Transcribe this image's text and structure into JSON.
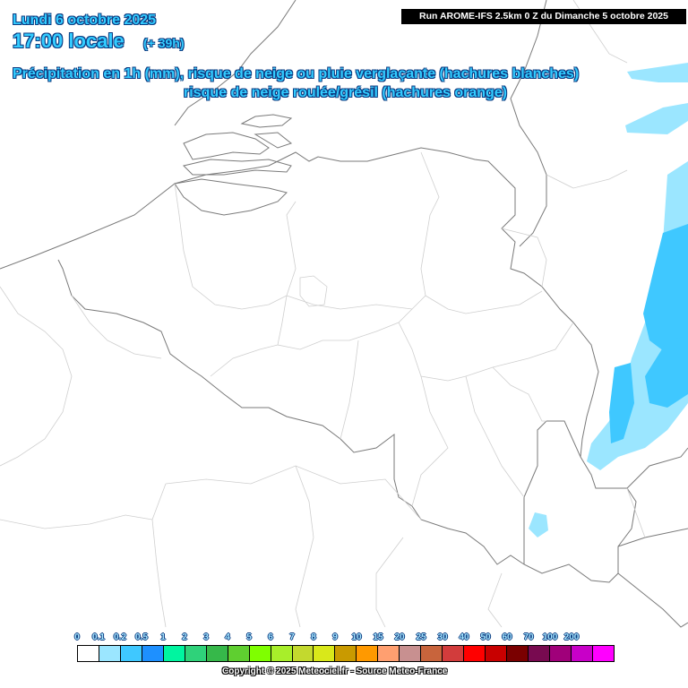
{
  "header": {
    "date": "Lundi 6 octobre 2025",
    "time": "17:00 locale",
    "lead": "(+ 39h)",
    "title_line1": "Précipitation en 1h (mm), risque de neige ou pluie verglaçante (hachures blanches)",
    "title_line2": "risque de neige roulée/grésil (hachures orange)"
  },
  "run_info": "Run AROME-IFS 2.5km 0 Z du Dimanche 5 octobre 2025",
  "legend": [
    {
      "label": "0",
      "color": "#ffffff"
    },
    {
      "label": "0.1",
      "color": "#9be6ff"
    },
    {
      "label": "0.2",
      "color": "#3fc8ff"
    },
    {
      "label": "0.5",
      "color": "#1e90ff"
    },
    {
      "label": "1",
      "color": "#00f5a0"
    },
    {
      "label": "2",
      "color": "#2fd27a"
    },
    {
      "label": "3",
      "color": "#36b84a"
    },
    {
      "label": "4",
      "color": "#5fcf30"
    },
    {
      "label": "5",
      "color": "#7fff00"
    },
    {
      "label": "6",
      "color": "#a8ee2a"
    },
    {
      "label": "7",
      "color": "#c3d92e"
    },
    {
      "label": "8",
      "color": "#d9e81a"
    },
    {
      "label": "9",
      "color": "#c99a00"
    },
    {
      "label": "10",
      "color": "#ff9900"
    },
    {
      "label": "15",
      "color": "#ff9f70"
    },
    {
      "label": "20",
      "color": "#c89090"
    },
    {
      "label": "25",
      "color": "#c8643c"
    },
    {
      "label": "30",
      "color": "#d23c3c"
    },
    {
      "label": "40",
      "color": "#ff0000"
    },
    {
      "label": "50",
      "color": "#c80000"
    },
    {
      "label": "60",
      "color": "#7a0000"
    },
    {
      "label": "70",
      "color": "#780a50"
    },
    {
      "label": "100",
      "color": "#a0007a"
    },
    {
      "label": "200",
      "color": "#c800c8"
    },
    {
      "label": "",
      "color": "#ff00ff"
    }
  ],
  "copyright": "Copyright © 2025 Meteociel.fr - Source Meteo-France"
}
